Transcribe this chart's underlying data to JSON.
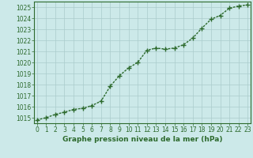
{
  "x": [
    0,
    1,
    2,
    3,
    4,
    5,
    6,
    7,
    8,
    9,
    10,
    11,
    12,
    13,
    14,
    15,
    16,
    17,
    18,
    19,
    20,
    21,
    22,
    23
  ],
  "y": [
    1014.8,
    1015.0,
    1015.3,
    1015.5,
    1015.75,
    1015.85,
    1016.1,
    1016.5,
    1017.85,
    1018.8,
    1019.5,
    1020.0,
    1021.1,
    1021.3,
    1021.2,
    1021.3,
    1021.6,
    1022.2,
    1023.1,
    1023.9,
    1024.25,
    1024.9,
    1025.1,
    1025.2
  ],
  "line_color": "#2d6a2d",
  "marker": "+",
  "marker_size": 4,
  "marker_lw": 1.0,
  "line_width": 1.0,
  "bg_color": "#cce9e9",
  "grid_color": "#aacccc",
  "tick_color": "#2d6a2d",
  "label_color": "#2d6a2d",
  "xlabel": "Graphe pression niveau de la mer (hPa)",
  "xlabel_fontsize": 6.5,
  "ylim": [
    1014.5,
    1025.5
  ],
  "yticks": [
    1015,
    1016,
    1017,
    1018,
    1019,
    1020,
    1021,
    1022,
    1023,
    1024,
    1025
  ],
  "xticks": [
    0,
    1,
    2,
    3,
    4,
    5,
    6,
    7,
    8,
    9,
    10,
    11,
    12,
    13,
    14,
    15,
    16,
    17,
    18,
    19,
    20,
    21,
    22,
    23
  ],
  "tick_fontsize": 5.5,
  "border_color": "#2d6a2d",
  "xlim": [
    -0.3,
    23.3
  ]
}
